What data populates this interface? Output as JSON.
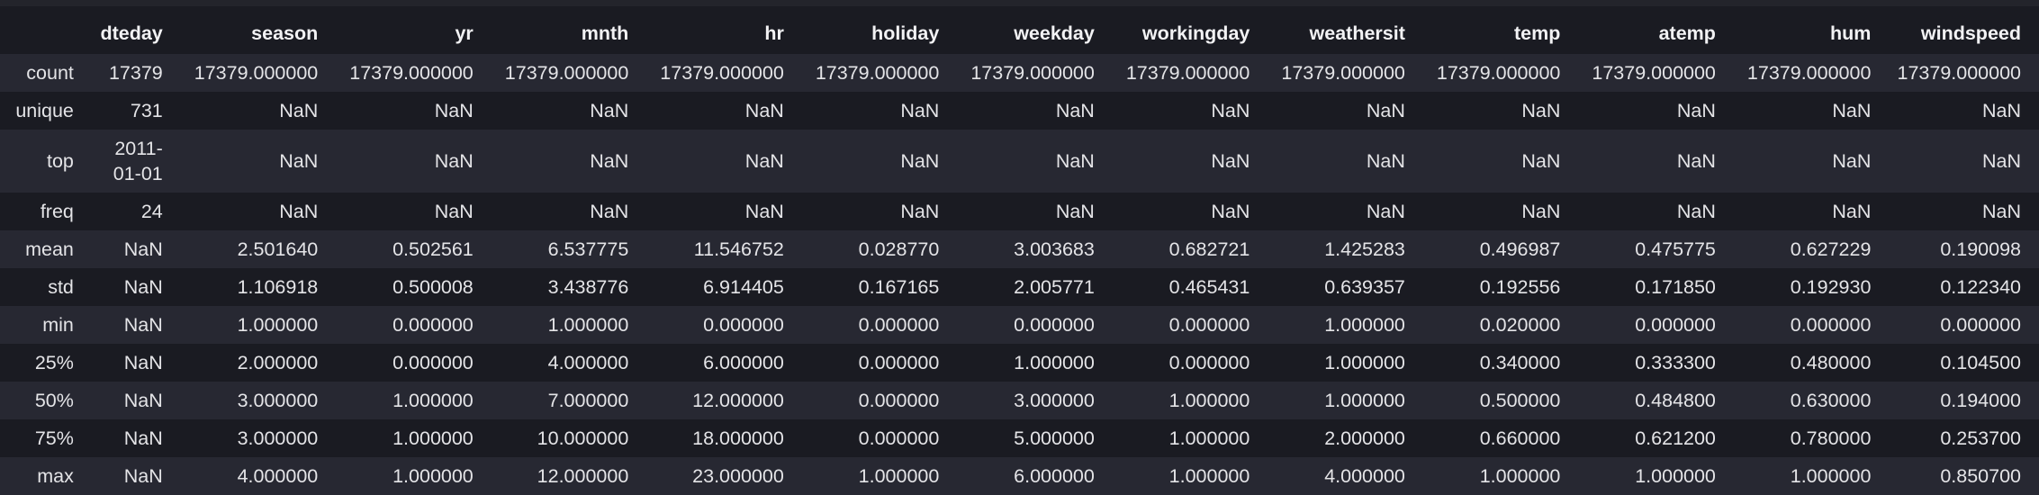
{
  "table": {
    "columns": [
      "",
      "dteday",
      "season",
      "yr",
      "mnth",
      "hr",
      "holiday",
      "weekday",
      "workingday",
      "weathersit",
      "temp",
      "atemp",
      "hum",
      "windspeed"
    ],
    "rows": [
      {
        "label": "count",
        "cells": [
          "17379",
          "17379.000000",
          "17379.000000",
          "17379.000000",
          "17379.000000",
          "17379.000000",
          "17379.000000",
          "17379.000000",
          "17379.000000",
          "17379.000000",
          "17379.000000",
          "17379.000000",
          "17379.000000"
        ]
      },
      {
        "label": "unique",
        "cells": [
          "731",
          "NaN",
          "NaN",
          "NaN",
          "NaN",
          "NaN",
          "NaN",
          "NaN",
          "NaN",
          "NaN",
          "NaN",
          "NaN",
          "NaN"
        ]
      },
      {
        "label": "top",
        "cells": [
          "2011-01-01",
          "NaN",
          "NaN",
          "NaN",
          "NaN",
          "NaN",
          "NaN",
          "NaN",
          "NaN",
          "NaN",
          "NaN",
          "NaN",
          "NaN"
        ]
      },
      {
        "label": "freq",
        "cells": [
          "24",
          "NaN",
          "NaN",
          "NaN",
          "NaN",
          "NaN",
          "NaN",
          "NaN",
          "NaN",
          "NaN",
          "NaN",
          "NaN",
          "NaN"
        ]
      },
      {
        "label": "mean",
        "cells": [
          "NaN",
          "2.501640",
          "0.502561",
          "6.537775",
          "11.546752",
          "0.028770",
          "3.003683",
          "0.682721",
          "1.425283",
          "0.496987",
          "0.475775",
          "0.627229",
          "0.190098"
        ]
      },
      {
        "label": "std",
        "cells": [
          "NaN",
          "1.106918",
          "0.500008",
          "3.438776",
          "6.914405",
          "0.167165",
          "2.005771",
          "0.465431",
          "0.639357",
          "0.192556",
          "0.171850",
          "0.192930",
          "0.122340"
        ]
      },
      {
        "label": "min",
        "cells": [
          "NaN",
          "1.000000",
          "0.000000",
          "1.000000",
          "0.000000",
          "0.000000",
          "0.000000",
          "0.000000",
          "1.000000",
          "0.020000",
          "0.000000",
          "0.000000",
          "0.000000"
        ]
      },
      {
        "label": "25%",
        "cells": [
          "NaN",
          "2.000000",
          "0.000000",
          "4.000000",
          "6.000000",
          "0.000000",
          "1.000000",
          "0.000000",
          "1.000000",
          "0.340000",
          "0.333300",
          "0.480000",
          "0.104500"
        ]
      },
      {
        "label": "50%",
        "cells": [
          "NaN",
          "3.000000",
          "1.000000",
          "7.000000",
          "12.000000",
          "0.000000",
          "3.000000",
          "1.000000",
          "1.000000",
          "0.500000",
          "0.484800",
          "0.630000",
          "0.194000"
        ]
      },
      {
        "label": "75%",
        "cells": [
          "NaN",
          "3.000000",
          "1.000000",
          "10.000000",
          "18.000000",
          "0.000000",
          "5.000000",
          "1.000000",
          "2.000000",
          "0.660000",
          "0.621200",
          "0.780000",
          "0.253700"
        ]
      },
      {
        "label": "max",
        "cells": [
          "NaN",
          "4.000000",
          "1.000000",
          "12.000000",
          "23.000000",
          "1.000000",
          "6.000000",
          "1.000000",
          "4.000000",
          "1.000000",
          "1.000000",
          "1.000000",
          "0.850700"
        ]
      }
    ]
  }
}
